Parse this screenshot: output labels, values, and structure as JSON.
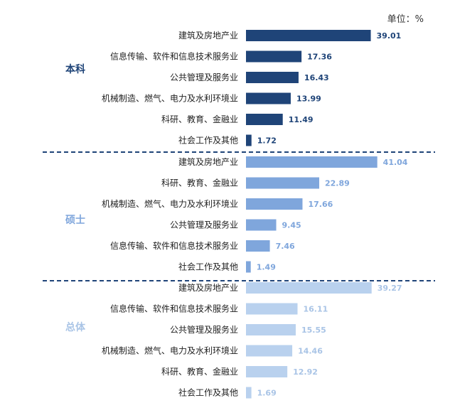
{
  "unit_label": "单位：%",
  "colors": {
    "本科": "#1f4478",
    "硕士": "#7fa6dc",
    "总体": "#b9d1ee",
    "divider": "#1f4478"
  },
  "chart_data": [
    {
      "type": "bar",
      "orientation": "horizontal",
      "group": "本科",
      "categories": [
        "建筑及房地产业",
        "信息传输、软件和信息技术服务业",
        "公共管理及服务业",
        "机械制造、燃气、电力及水利环境业",
        "科研、教育、金融业",
        "社会工作及其他"
      ],
      "values": [
        39.01,
        17.36,
        16.43,
        13.99,
        11.49,
        1.72
      ]
    },
    {
      "type": "bar",
      "orientation": "horizontal",
      "group": "硕士",
      "categories": [
        "建筑及房地产业",
        "科研、教育、金融业",
        "机械制造、燃气、电力及水利环境业",
        "公共管理及服务业",
        "信息传输、软件和信息技术服务业",
        "社会工作及其他"
      ],
      "values": [
        41.04,
        22.89,
        17.66,
        9.45,
        7.46,
        1.49
      ]
    },
    {
      "type": "bar",
      "orientation": "horizontal",
      "group": "总体",
      "categories": [
        "建筑及房地产业",
        "信息传输、软件和信息技术服务业",
        "公共管理及服务业",
        "机械制造、燃气、电力及水利环境业",
        "科研、教育、金融业",
        "社会工作及其他"
      ],
      "values": [
        39.27,
        16.11,
        15.55,
        14.46,
        12.92,
        1.69
      ]
    }
  ]
}
